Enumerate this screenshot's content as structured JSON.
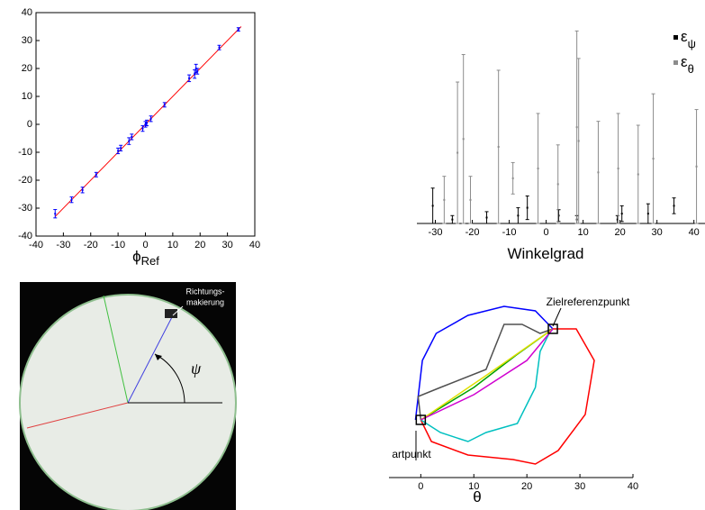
{
  "chart_data": [
    {
      "type": "errorbar",
      "xlabel": {
        "text": "ϕ",
        "sub": "Ref"
      },
      "xlim": [
        -40,
        40
      ],
      "ylim": [
        -40,
        40
      ],
      "xticks": [
        -40,
        -30,
        -20,
        -10,
        0,
        10,
        20,
        30,
        40
      ],
      "yticks": [
        -40,
        -30,
        -20,
        -10,
        0,
        10,
        20,
        30,
        40
      ],
      "box": true,
      "fit": {
        "color": "#ff0000",
        "x": [
          -33,
          35
        ],
        "values": [
          -33,
          35
        ]
      },
      "series": [
        {
          "color": "#0000ff",
          "x": [
            -33,
            -27,
            -23,
            -18,
            -10,
            -9,
            -6,
            -5,
            -1,
            0,
            0.5,
            2,
            7,
            16,
            18,
            18.5,
            19,
            27,
            34
          ],
          "values": [
            -32,
            -27,
            -23.5,
            -18,
            -9.5,
            -8.5,
            -6,
            -4.5,
            -1.5,
            0,
            0.5,
            2,
            7,
            16.5,
            18,
            20,
            19,
            27.5,
            34
          ],
          "errors": [
            1.5,
            1,
            1,
            0.8,
            1,
            1,
            1.2,
            1,
            1,
            1,
            1,
            1,
            0.8,
            1.2,
            1.5,
            1.5,
            1,
            0.8,
            0.6
          ]
        }
      ]
    },
    {
      "type": "errorbar",
      "xlabel": {
        "text": "Winkelgrad"
      },
      "xlim": [
        -35,
        43
      ],
      "ylim": [
        0,
        10
      ],
      "xticks": [
        -30,
        -20,
        -10,
        0,
        10,
        20,
        30,
        40
      ],
      "box": false,
      "legend": "top-right",
      "series": [
        {
          "name": "ε",
          "subscript": "ψ",
          "color": "#000000",
          "x": [
            -30.7,
            -25.4,
            -16.1,
            -7.6,
            -5.1,
            3.4,
            8.3,
            19.3,
            20.5,
            27.6,
            34.6
          ],
          "values": [
            0.9,
            0.2,
            0.3,
            0.4,
            0.8,
            0.4,
            0.2,
            0.2,
            0.5,
            0.5,
            0.9
          ],
          "errors": [
            0.9,
            0.2,
            0.3,
            0.4,
            0.6,
            0.3,
            0.2,
            0.2,
            0.4,
            0.5,
            0.4
          ]
        },
        {
          "name": "ε",
          "subscript": "θ",
          "color": "#8c8c8c",
          "x": [
            -27.6,
            -24,
            -22.4,
            -20.5,
            -12.9,
            -9,
            -2.2,
            3.2,
            8.3,
            8.8,
            14.1,
            19.5,
            24.9,
            29,
            40.7
          ],
          "values": [
            1.2,
            3.6,
            4.3,
            1.2,
            3.9,
            2.3,
            2.8,
            2.0,
            4.9,
            4.2,
            2.6,
            2.8,
            2.5,
            3.3,
            2.9
          ],
          "errors": [
            1.2,
            3.6,
            4.3,
            1.2,
            3.9,
            0.8,
            2.8,
            2.0,
            4.9,
            4.2,
            2.6,
            2.8,
            2.5,
            3.3,
            2.9
          ]
        }
      ]
    },
    {
      "type": "line",
      "xlabel": {
        "text": "θ"
      },
      "xlim": [
        -6,
        40
      ],
      "ylim": [
        0,
        10
      ],
      "xticks": [
        0,
        10,
        20,
        30,
        40
      ],
      "annotations": [
        "Zielreferenzpunkt",
        "artpunkt"
      ],
      "series": [
        {
          "color": "#0000ff",
          "x": [
            -1,
            0.3,
            2.9,
            8.9,
            15.7,
            21.6,
            24.9
          ],
          "values": [
            3.2,
            6.5,
            8,
            9,
            9.5,
            9.25,
            8.25
          ]
        },
        {
          "color": "#ff0000",
          "x": [
            0,
            2,
            8.9,
            17.4,
            21.6,
            25.9,
            31,
            32.7,
            29.3,
            24.9
          ],
          "values": [
            3.2,
            2,
            1.25,
            1,
            0.75,
            1.5,
            3.5,
            6.5,
            8.25,
            8.25
          ]
        },
        {
          "color": "#505050",
          "x": [
            0,
            -0.5,
            3.7,
            12.3,
            15.7,
            19.1,
            22.5,
            24.9
          ],
          "values": [
            3.2,
            4.5,
            5,
            6,
            8.5,
            8.5,
            8,
            8.25
          ]
        },
        {
          "color": "#00c0c0",
          "x": [
            0,
            3.7,
            8.9,
            12.3,
            18.2,
            21.6,
            22.5,
            24.2,
            24.9
          ],
          "values": [
            3.2,
            2.5,
            2,
            2.5,
            3,
            5,
            7,
            8,
            8.25
          ]
        },
        {
          "color": "#00a000",
          "x": [
            0,
            10,
            18,
            24.9
          ],
          "values": [
            3.2,
            5,
            6.8,
            8.25
          ]
        },
        {
          "color": "#e0e000",
          "x": [
            0,
            12,
            24.9
          ],
          "values": [
            3.2,
            5.6,
            8.25
          ]
        },
        {
          "color": "#d000d0",
          "x": [
            0,
            10,
            20,
            24.9
          ],
          "values": [
            3.2,
            4.6,
            6.5,
            8.25
          ]
        }
      ]
    }
  ],
  "image_panel": {
    "marker_label": [
      "Richtungs-",
      "makierung"
    ],
    "angle_label": "ψ"
  }
}
